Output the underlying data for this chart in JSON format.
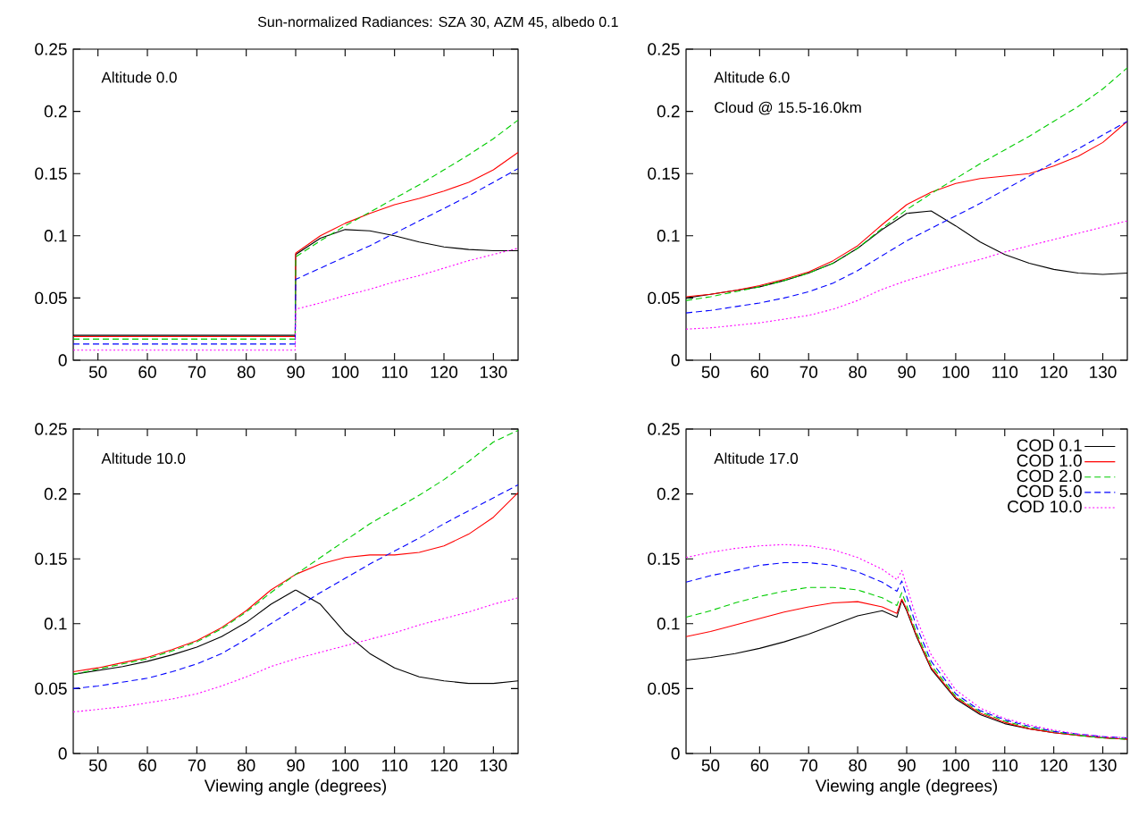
{
  "chart_data": [
    {
      "type": "line",
      "title": "Sun-normalized Radiances: SZA 30, AZM 45, albedo 0.1",
      "annotations": [
        "Altitude 0.0"
      ],
      "x": [
        45,
        50,
        55,
        60,
        65,
        70,
        75,
        80,
        85,
        89.9,
        90,
        95,
        100,
        105,
        110,
        115,
        120,
        125,
        130,
        135
      ],
      "xlim": [
        45,
        135
      ],
      "ylim": [
        0,
        0.25
      ],
      "xticks": [
        50,
        60,
        70,
        80,
        90,
        100,
        110,
        120,
        130
      ],
      "yticks": [
        0,
        0.05,
        0.1,
        0.15,
        0.2,
        0.25
      ],
      "series": [
        {
          "color": "#000000",
          "line_style": "solid",
          "values": [
            0.02,
            0.02,
            0.02,
            0.02,
            0.02,
            0.02,
            0.02,
            0.02,
            0.02,
            0.02,
            0.085,
            0.098,
            0.105,
            0.104,
            0.1,
            0.095,
            0.091,
            0.089,
            0.088,
            0.088
          ]
        },
        {
          "color": "#ff0000",
          "line_style": "solid",
          "values": [
            0.019,
            0.019,
            0.019,
            0.019,
            0.019,
            0.019,
            0.019,
            0.019,
            0.019,
            0.019,
            0.086,
            0.1,
            0.11,
            0.118,
            0.125,
            0.13,
            0.136,
            0.143,
            0.153,
            0.167
          ]
        },
        {
          "color": "#00cc00",
          "line_style": "dashed",
          "values": [
            0.017,
            0.017,
            0.017,
            0.017,
            0.017,
            0.017,
            0.017,
            0.017,
            0.017,
            0.017,
            0.083,
            0.096,
            0.108,
            0.119,
            0.13,
            0.141,
            0.153,
            0.165,
            0.178,
            0.193
          ]
        },
        {
          "color": "#0000ff",
          "line_style": "dashed",
          "values": [
            0.013,
            0.013,
            0.013,
            0.013,
            0.013,
            0.013,
            0.013,
            0.013,
            0.013,
            0.013,
            0.065,
            0.074,
            0.083,
            0.092,
            0.102,
            0.112,
            0.122,
            0.132,
            0.143,
            0.154
          ]
        },
        {
          "color": "#ff00ff",
          "line_style": "dotted",
          "values": [
            0.008,
            0.008,
            0.008,
            0.008,
            0.008,
            0.008,
            0.008,
            0.008,
            0.008,
            0.008,
            0.041,
            0.046,
            0.052,
            0.057,
            0.063,
            0.068,
            0.074,
            0.08,
            0.085,
            0.09
          ]
        }
      ]
    },
    {
      "type": "line",
      "annotations": [
        "Altitude 6.0",
        "Cloud @ 15.5-16.0km"
      ],
      "x": [
        45,
        50,
        55,
        60,
        65,
        70,
        75,
        80,
        85,
        90,
        95,
        100,
        105,
        110,
        115,
        120,
        125,
        130,
        135
      ],
      "xlim": [
        45,
        135
      ],
      "ylim": [
        0,
        0.25
      ],
      "xticks": [
        50,
        60,
        70,
        80,
        90,
        100,
        110,
        120,
        130
      ],
      "yticks": [
        0,
        0.05,
        0.1,
        0.15,
        0.2,
        0.25
      ],
      "series": [
        {
          "color": "#000000",
          "line_style": "solid",
          "values": [
            0.05,
            0.053,
            0.056,
            0.059,
            0.064,
            0.07,
            0.078,
            0.09,
            0.105,
            0.118,
            0.12,
            0.108,
            0.095,
            0.085,
            0.078,
            0.073,
            0.07,
            0.069,
            0.07
          ]
        },
        {
          "color": "#ff0000",
          "line_style": "solid",
          "values": [
            0.051,
            0.053,
            0.056,
            0.06,
            0.065,
            0.071,
            0.08,
            0.092,
            0.109,
            0.125,
            0.135,
            0.142,
            0.146,
            0.148,
            0.15,
            0.156,
            0.164,
            0.175,
            0.192
          ]
        },
        {
          "color": "#00cc00",
          "line_style": "dashed",
          "values": [
            0.048,
            0.051,
            0.055,
            0.059,
            0.064,
            0.07,
            0.078,
            0.09,
            0.106,
            0.121,
            0.134,
            0.146,
            0.158,
            0.169,
            0.18,
            0.192,
            0.204,
            0.218,
            0.235
          ]
        },
        {
          "color": "#0000ff",
          "line_style": "dashed",
          "values": [
            0.038,
            0.04,
            0.043,
            0.046,
            0.05,
            0.055,
            0.062,
            0.072,
            0.084,
            0.096,
            0.106,
            0.116,
            0.126,
            0.137,
            0.148,
            0.159,
            0.17,
            0.181,
            0.192
          ]
        },
        {
          "color": "#ff00ff",
          "line_style": "dotted",
          "values": [
            0.025,
            0.026,
            0.028,
            0.03,
            0.033,
            0.036,
            0.041,
            0.048,
            0.057,
            0.064,
            0.07,
            0.076,
            0.081,
            0.087,
            0.092,
            0.097,
            0.102,
            0.107,
            0.112
          ]
        }
      ]
    },
    {
      "type": "line",
      "annotations": [
        "Altitude 10.0"
      ],
      "xlabel": "Viewing angle (degrees)",
      "x": [
        45,
        50,
        55,
        60,
        65,
        70,
        75,
        80,
        85,
        90,
        95,
        100,
        105,
        110,
        115,
        120,
        125,
        130,
        135
      ],
      "xlim": [
        45,
        135
      ],
      "ylim": [
        0,
        0.25
      ],
      "xticks": [
        50,
        60,
        70,
        80,
        90,
        100,
        110,
        120,
        130
      ],
      "yticks": [
        0,
        0.05,
        0.1,
        0.15,
        0.2,
        0.25
      ],
      "series": [
        {
          "color": "#000000",
          "line_style": "solid",
          "values": [
            0.061,
            0.064,
            0.067,
            0.071,
            0.076,
            0.082,
            0.09,
            0.101,
            0.115,
            0.126,
            0.115,
            0.093,
            0.077,
            0.066,
            0.059,
            0.056,
            0.054,
            0.054,
            0.056
          ]
        },
        {
          "color": "#ff0000",
          "line_style": "solid",
          "values": [
            0.063,
            0.066,
            0.07,
            0.074,
            0.08,
            0.087,
            0.097,
            0.11,
            0.126,
            0.138,
            0.146,
            0.151,
            0.153,
            0.153,
            0.155,
            0.16,
            0.169,
            0.182,
            0.201
          ]
        },
        {
          "color": "#00cc00",
          "line_style": "dashed",
          "values": [
            0.061,
            0.065,
            0.069,
            0.073,
            0.079,
            0.086,
            0.096,
            0.109,
            0.124,
            0.138,
            0.151,
            0.164,
            0.177,
            0.188,
            0.199,
            0.211,
            0.225,
            0.24,
            0.249
          ]
        },
        {
          "color": "#0000ff",
          "line_style": "dashed",
          "values": [
            0.05,
            0.052,
            0.055,
            0.058,
            0.063,
            0.069,
            0.077,
            0.088,
            0.1,
            0.112,
            0.124,
            0.135,
            0.146,
            0.156,
            0.166,
            0.177,
            0.187,
            0.197,
            0.207
          ]
        },
        {
          "color": "#ff00ff",
          "line_style": "dotted",
          "values": [
            0.032,
            0.034,
            0.036,
            0.039,
            0.042,
            0.046,
            0.052,
            0.059,
            0.067,
            0.073,
            0.078,
            0.083,
            0.088,
            0.093,
            0.099,
            0.104,
            0.109,
            0.115,
            0.12
          ]
        }
      ]
    },
    {
      "type": "line",
      "annotations": [
        "Altitude 17.0"
      ],
      "xlabel": "Viewing angle (degrees)",
      "legend": "top right",
      "x": [
        45,
        50,
        55,
        60,
        65,
        70,
        75,
        80,
        85,
        88,
        89,
        90,
        92,
        95,
        100,
        105,
        110,
        115,
        120,
        125,
        130,
        135
      ],
      "xlim": [
        45,
        135
      ],
      "ylim": [
        0,
        0.25
      ],
      "xticks": [
        50,
        60,
        70,
        80,
        90,
        100,
        110,
        120,
        130
      ],
      "yticks": [
        0,
        0.05,
        0.1,
        0.15,
        0.2,
        0.25
      ],
      "series": [
        {
          "name": "COD 0.1",
          "color": "#000000",
          "line_style": "solid",
          "values": [
            0.072,
            0.074,
            0.077,
            0.081,
            0.086,
            0.092,
            0.099,
            0.106,
            0.11,
            0.105,
            0.118,
            0.11,
            0.09,
            0.065,
            0.042,
            0.03,
            0.023,
            0.019,
            0.016,
            0.014,
            0.012,
            0.011
          ]
        },
        {
          "name": "COD 1.0",
          "color": "#ff0000",
          "line_style": "solid",
          "values": [
            0.09,
            0.094,
            0.099,
            0.104,
            0.109,
            0.113,
            0.116,
            0.117,
            0.113,
            0.108,
            0.119,
            0.111,
            0.091,
            0.066,
            0.043,
            0.031,
            0.024,
            0.019,
            0.016,
            0.014,
            0.012,
            0.011
          ]
        },
        {
          "name": "COD 2.0",
          "color": "#00cc00",
          "line_style": "dashed",
          "values": [
            0.105,
            0.11,
            0.116,
            0.121,
            0.125,
            0.128,
            0.128,
            0.126,
            0.12,
            0.114,
            0.124,
            0.114,
            0.093,
            0.068,
            0.044,
            0.032,
            0.025,
            0.02,
            0.017,
            0.014,
            0.012,
            0.011
          ]
        },
        {
          "name": "COD 5.0",
          "color": "#0000ff",
          "line_style": "dashed",
          "values": [
            0.132,
            0.137,
            0.141,
            0.145,
            0.147,
            0.147,
            0.145,
            0.14,
            0.132,
            0.125,
            0.133,
            0.121,
            0.098,
            0.071,
            0.046,
            0.033,
            0.026,
            0.021,
            0.017,
            0.015,
            0.013,
            0.012
          ]
        },
        {
          "name": "COD 10.0",
          "color": "#ff00ff",
          "line_style": "dotted",
          "values": [
            0.151,
            0.155,
            0.158,
            0.16,
            0.161,
            0.16,
            0.157,
            0.151,
            0.142,
            0.134,
            0.141,
            0.129,
            0.104,
            0.076,
            0.049,
            0.035,
            0.027,
            0.022,
            0.018,
            0.015,
            0.013,
            0.012
          ]
        }
      ]
    }
  ]
}
